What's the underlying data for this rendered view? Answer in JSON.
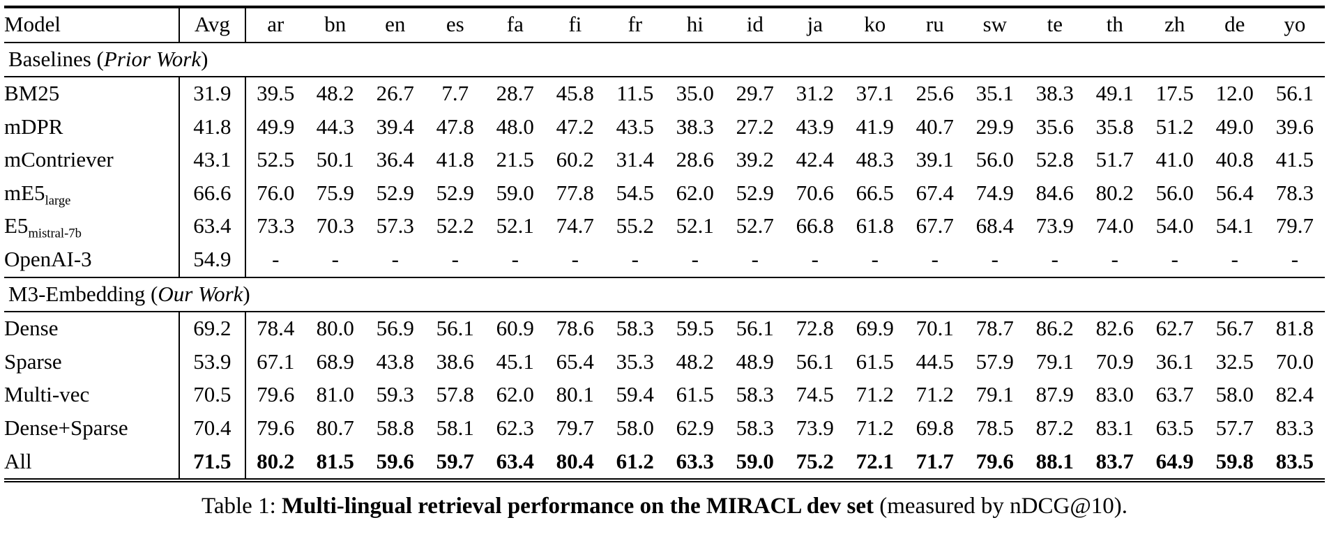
{
  "page": {
    "background": "#ffffff",
    "text_color": "#000000"
  },
  "table": {
    "columns": [
      "Model",
      "Avg",
      "ar",
      "bn",
      "en",
      "es",
      "fa",
      "fi",
      "fr",
      "hi",
      "id",
      "ja",
      "ko",
      "ru",
      "sw",
      "te",
      "th",
      "zh",
      "de",
      "yo"
    ],
    "sections": [
      {
        "title": {
          "prefix": "Baselines (",
          "italic": "Prior Work",
          "suffix": ")"
        },
        "rows": [
          {
            "model": "BM25",
            "model_sub": "",
            "avg": "31.9",
            "bold": false,
            "values": [
              "39.5",
              "48.2",
              "26.7",
              "7.7",
              "28.7",
              "45.8",
              "11.5",
              "35.0",
              "29.7",
              "31.2",
              "37.1",
              "25.6",
              "35.1",
              "38.3",
              "49.1",
              "17.5",
              "12.0",
              "56.1"
            ]
          },
          {
            "model": "mDPR",
            "model_sub": "",
            "avg": "41.8",
            "bold": false,
            "values": [
              "49.9",
              "44.3",
              "39.4",
              "47.8",
              "48.0",
              "47.2",
              "43.5",
              "38.3",
              "27.2",
              "43.9",
              "41.9",
              "40.7",
              "29.9",
              "35.6",
              "35.8",
              "51.2",
              "49.0",
              "39.6"
            ]
          },
          {
            "model": "mContriever",
            "model_sub": "",
            "avg": "43.1",
            "bold": false,
            "values": [
              "52.5",
              "50.1",
              "36.4",
              "41.8",
              "21.5",
              "60.2",
              "31.4",
              "28.6",
              "39.2",
              "42.4",
              "48.3",
              "39.1",
              "56.0",
              "52.8",
              "51.7",
              "41.0",
              "40.8",
              "41.5"
            ]
          },
          {
            "model": "mE5",
            "model_sub": "large",
            "avg": "66.6",
            "bold": false,
            "values": [
              "76.0",
              "75.9",
              "52.9",
              "52.9",
              "59.0",
              "77.8",
              "54.5",
              "62.0",
              "52.9",
              "70.6",
              "66.5",
              "67.4",
              "74.9",
              "84.6",
              "80.2",
              "56.0",
              "56.4",
              "78.3"
            ]
          },
          {
            "model": "E5",
            "model_sub": "mistral-7b",
            "avg": "63.4",
            "bold": false,
            "values": [
              "73.3",
              "70.3",
              "57.3",
              "52.2",
              "52.1",
              "74.7",
              "55.2",
              "52.1",
              "52.7",
              "66.8",
              "61.8",
              "67.7",
              "68.4",
              "73.9",
              "74.0",
              "54.0",
              "54.1",
              "79.7"
            ]
          },
          {
            "model": "OpenAI-3",
            "model_sub": "",
            "avg": "54.9",
            "bold": false,
            "values": [
              "-",
              "-",
              "-",
              "-",
              "-",
              "-",
              "-",
              "-",
              "-",
              "-",
              "-",
              "-",
              "-",
              "-",
              "-",
              "-",
              "-",
              "-"
            ]
          }
        ]
      },
      {
        "title": {
          "prefix": "M3-Embedding (",
          "italic": "Our Work",
          "suffix": ")"
        },
        "rows": [
          {
            "model": "Dense",
            "model_sub": "",
            "avg": "69.2",
            "bold": false,
            "values": [
              "78.4",
              "80.0",
              "56.9",
              "56.1",
              "60.9",
              "78.6",
              "58.3",
              "59.5",
              "56.1",
              "72.8",
              "69.9",
              "70.1",
              "78.7",
              "86.2",
              "82.6",
              "62.7",
              "56.7",
              "81.8"
            ]
          },
          {
            "model": "Sparse",
            "model_sub": "",
            "avg": "53.9",
            "bold": false,
            "values": [
              "67.1",
              "68.9",
              "43.8",
              "38.6",
              "45.1",
              "65.4",
              "35.3",
              "48.2",
              "48.9",
              "56.1",
              "61.5",
              "44.5",
              "57.9",
              "79.1",
              "70.9",
              "36.1",
              "32.5",
              "70.0"
            ]
          },
          {
            "model": "Multi-vec",
            "model_sub": "",
            "avg": "70.5",
            "bold": false,
            "values": [
              "79.6",
              "81.0",
              "59.3",
              "57.8",
              "62.0",
              "80.1",
              "59.4",
              "61.5",
              "58.3",
              "74.5",
              "71.2",
              "71.2",
              "79.1",
              "87.9",
              "83.0",
              "63.7",
              "58.0",
              "82.4"
            ]
          },
          {
            "model": "Dense+Sparse",
            "model_sub": "",
            "avg": "70.4",
            "bold": false,
            "values": [
              "79.6",
              "80.7",
              "58.8",
              "58.1",
              "62.3",
              "79.7",
              "58.0",
              "62.9",
              "58.3",
              "73.9",
              "71.2",
              "69.8",
              "78.5",
              "87.2",
              "83.1",
              "63.5",
              "57.7",
              "83.3"
            ]
          },
          {
            "model": "All",
            "model_sub": "",
            "avg": "71.5",
            "bold": true,
            "values": [
              "80.2",
              "81.5",
              "59.6",
              "59.7",
              "63.4",
              "80.4",
              "61.2",
              "63.3",
              "59.0",
              "75.2",
              "72.1",
              "71.7",
              "79.6",
              "88.1",
              "83.7",
              "64.9",
              "59.8",
              "83.5"
            ]
          }
        ]
      }
    ]
  },
  "caption": {
    "prefix": "Table 1: ",
    "bold": "Multi-lingual retrieval performance on the MIRACL dev set",
    "suffix": " (measured by nDCG@10)."
  }
}
